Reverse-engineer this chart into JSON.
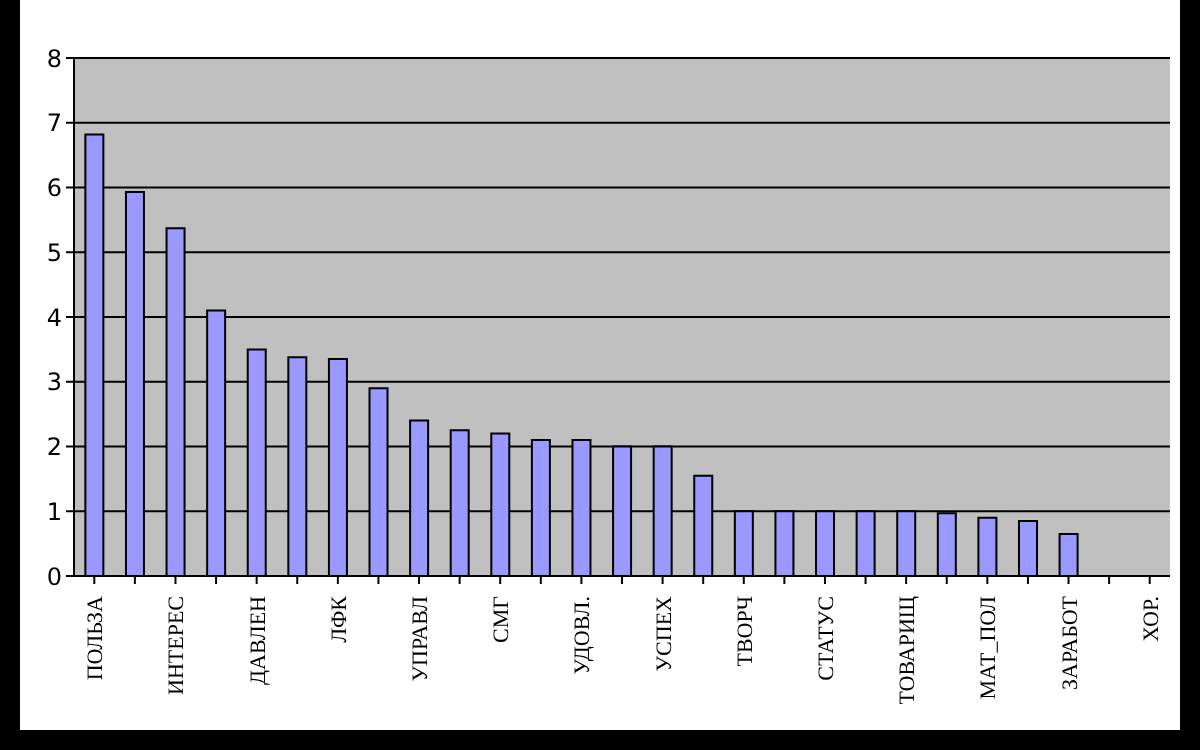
{
  "chart_data": {
    "type": "bar",
    "categories": [
      "ПОЛЬЗА",
      null,
      "ИНТЕРЕС",
      null,
      "ДАВЛЕН",
      null,
      "ЛФК",
      null,
      "УПРАВЛ",
      null,
      "СМГ",
      null,
      "УДОВЛ.",
      null,
      "УСПЕХ",
      null,
      "ТВОРЧ",
      null,
      "СТАТУС",
      null,
      "ТОВАРИЩ",
      null,
      "МАТ_ПОЛ",
      null,
      "ЗАРАБОТ",
      null,
      "ХОР."
    ],
    "values": [
      6.82,
      5.93,
      5.37,
      4.1,
      3.5,
      3.38,
      3.35,
      2.9,
      2.4,
      2.25,
      2.2,
      2.1,
      2.1,
      2.0,
      2.0,
      1.55,
      1.0,
      1.0,
      1.0,
      1.0,
      1.0,
      0.97,
      0.9,
      0.85,
      0.65,
      null,
      null
    ],
    "color": "#9999ff",
    "ylim": [
      0,
      8
    ],
    "yticks": [
      0,
      1,
      2,
      3,
      4,
      5,
      6,
      7,
      8
    ],
    "grid": "y"
  }
}
